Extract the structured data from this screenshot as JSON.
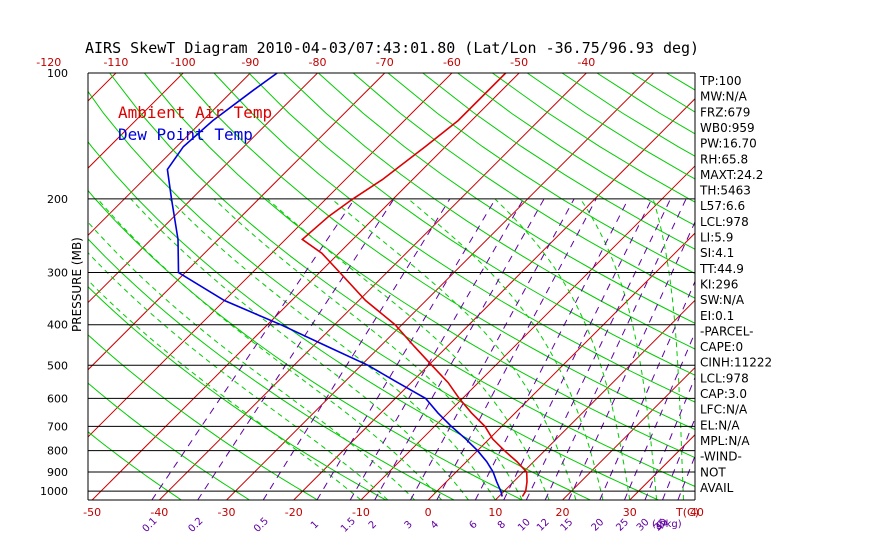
{
  "title": "AIRS SkewT Diagram 2010-04-03/07:43:01.80 (Lat/Lon -36.75/96.93 deg)",
  "ylabel": "PRESSURE (MB)",
  "legend": [
    {
      "label": "Ambient Air Temp",
      "color": "#dd0000"
    },
    {
      "label": "Dew Point Temp",
      "color": "#0000dd"
    }
  ],
  "colors": {
    "temp": "#dd0000",
    "dewpoint": "#0000dd",
    "dry_adiabat": "#00cc00",
    "moist_adiabat": "#00cc00",
    "isotherm": "#cc0000",
    "mixing_ratio": "#6000a0",
    "isobar": "#000000"
  },
  "top_ticks": [
    "-120",
    "-110",
    "-100",
    "-90",
    "-80",
    "-70",
    "-60",
    "-50",
    "-40"
  ],
  "bottom_ticks": [
    "-50",
    "-40",
    "-30",
    "-20",
    "-10",
    "0",
    "10",
    "20",
    "30",
    "40"
  ],
  "bottom_unit": "T(C)",
  "mixing_ratio_labels": [
    "0.1",
    "0.2",
    "0.5",
    "1",
    "1.5",
    "2",
    "3",
    "4",
    "6",
    "8",
    "10",
    "12",
    "15",
    "20",
    "25",
    "30",
    "35",
    "40"
  ],
  "mixing_ratio_unit": "(g/kg)",
  "pressure_ticks": [
    "100",
    "200",
    "300",
    "400",
    "500",
    "600",
    "700",
    "800",
    "900",
    "1000"
  ],
  "indices": [
    "TP:100",
    "MW:N/A",
    "FRZ:679",
    "WB0:959",
    "PW:16.70",
    "RH:65.8",
    "MAXT:24.2",
    "TH:5463",
    "L57:6.6",
    "LCL:978",
    "LI:5.9",
    "SI:4.1",
    "TT:44.9",
    "KI:296",
    "SW:N/A",
    "EI:0.1",
    "-PARCEL-",
    "CAPE:0",
    "CINH:11222",
    "LCL:978",
    "CAP:3.0",
    "LFC:N/A",
    "EL:N/A",
    "MPL:N/A",
    "-WIND-",
    "NOT",
    "AVAIL"
  ],
  "chart_data": {
    "type": "line",
    "title": "AIRS SkewT Diagram 2010-04-03/07:43:01.80 (Lat/Lon -36.75/96.93 deg)",
    "ylabel": "PRESSURE (MB)",
    "xlabel": "T(C)",
    "ylim": [
      1050,
      100
    ],
    "y_scale": "log",
    "x_skewed": true,
    "series": [
      {
        "name": "Ambient Air Temp",
        "points": [
          {
            "p": 1030,
            "t": 13.5
          },
          {
            "p": 1000,
            "t": 13.2
          },
          {
            "p": 950,
            "t": 12.0
          },
          {
            "p": 900,
            "t": 10.5
          },
          {
            "p": 850,
            "t": 7.5
          },
          {
            "p": 800,
            "t": 4.0
          },
          {
            "p": 750,
            "t": 0.5
          },
          {
            "p": 700,
            "t": -2.5
          },
          {
            "p": 650,
            "t": -6.5
          },
          {
            "p": 600,
            "t": -10.5
          },
          {
            "p": 550,
            "t": -14.5
          },
          {
            "p": 500,
            "t": -19.5
          },
          {
            "p": 450,
            "t": -25.0
          },
          {
            "p": 400,
            "t": -31.0
          },
          {
            "p": 350,
            "t": -39.0
          },
          {
            "p": 300,
            "t": -47.0
          },
          {
            "p": 270,
            "t": -52.5
          },
          {
            "p": 250,
            "t": -57.5
          },
          {
            "p": 220,
            "t": -57.0
          },
          {
            "p": 200,
            "t": -56.0
          },
          {
            "p": 180,
            "t": -54.5
          },
          {
            "p": 150,
            "t": -53.0
          },
          {
            "p": 130,
            "t": -52.0
          },
          {
            "p": 100,
            "t": -52.0
          }
        ]
      },
      {
        "name": "Dew Point Temp",
        "points": [
          {
            "p": 1030,
            "t": 10.5
          },
          {
            "p": 1000,
            "t": 9.5
          },
          {
            "p": 950,
            "t": 7.5
          },
          {
            "p": 900,
            "t": 5.5
          },
          {
            "p": 850,
            "t": 3.0
          },
          {
            "p": 800,
            "t": 0.0
          },
          {
            "p": 750,
            "t": -3.5
          },
          {
            "p": 700,
            "t": -7.5
          },
          {
            "p": 650,
            "t": -11.5
          },
          {
            "p": 600,
            "t": -15.5
          },
          {
            "p": 550,
            "t": -22.0
          },
          {
            "p": 500,
            "t": -29.0
          },
          {
            "p": 450,
            "t": -38.0
          },
          {
            "p": 400,
            "t": -48.0
          },
          {
            "p": 350,
            "t": -60.0
          },
          {
            "p": 300,
            "t": -71.0
          },
          {
            "p": 250,
            "t": -76.0
          },
          {
            "p": 200,
            "t": -83.0
          },
          {
            "p": 170,
            "t": -88.0
          },
          {
            "p": 150,
            "t": -89.0
          },
          {
            "p": 130,
            "t": -88.5
          },
          {
            "p": 110,
            "t": -87.0
          },
          {
            "p": 100,
            "t": -86.0
          }
        ]
      }
    ]
  }
}
